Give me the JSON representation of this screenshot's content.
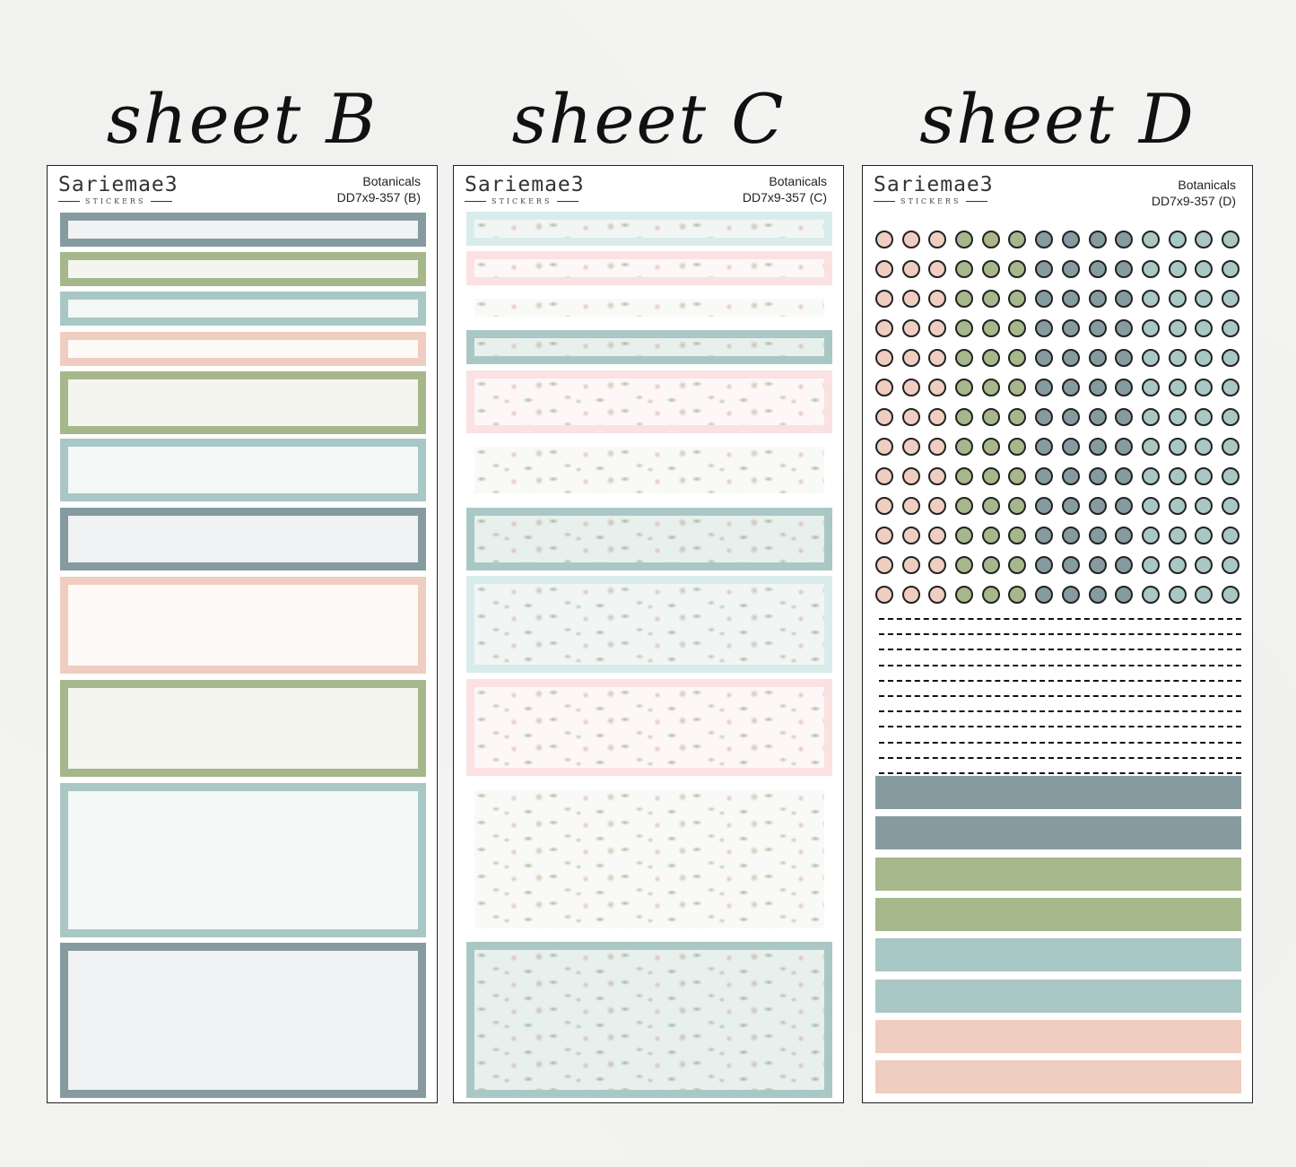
{
  "sheets": [
    {
      "title": "sheet B",
      "brand": "Sariemae3",
      "brand_sub": "STICKERS",
      "collection": "Botanicals",
      "code": "DD7x9-357 (B)"
    },
    {
      "title": "sheet C",
      "brand": "Sariemae3",
      "brand_sub": "STICKERS",
      "collection": "Botanicals",
      "code": "DD7x9-357 (C)"
    },
    {
      "title": "sheet D",
      "brand": "Sariemae3",
      "brand_sub": "STICKERS",
      "collection": "Botanicals",
      "code": "DD7x9-357 (D)"
    }
  ],
  "colors": {
    "slate": "#869ba0",
    "sage": "#a6b78b",
    "aqua": "#a9c7c4",
    "blush": "#efcdc0",
    "dot_pink": "#efcdc0",
    "dot_green": "#a6b78b",
    "dot_slate": "#869ba0",
    "dot_aqua": "#a9c7c4"
  },
  "dot_columns": [
    "dot_pink",
    "dot_pink",
    "dot_pink",
    "dot_green",
    "dot_green",
    "dot_green",
    "dot_slate",
    "dot_slate",
    "dot_slate",
    "dot_slate",
    "dot_aqua",
    "dot_aqua",
    "dot_aqua",
    "dot_aqua"
  ],
  "strip_colors": [
    "slate",
    "slate",
    "sage",
    "sage",
    "aqua",
    "aqua",
    "blush",
    "blush"
  ]
}
